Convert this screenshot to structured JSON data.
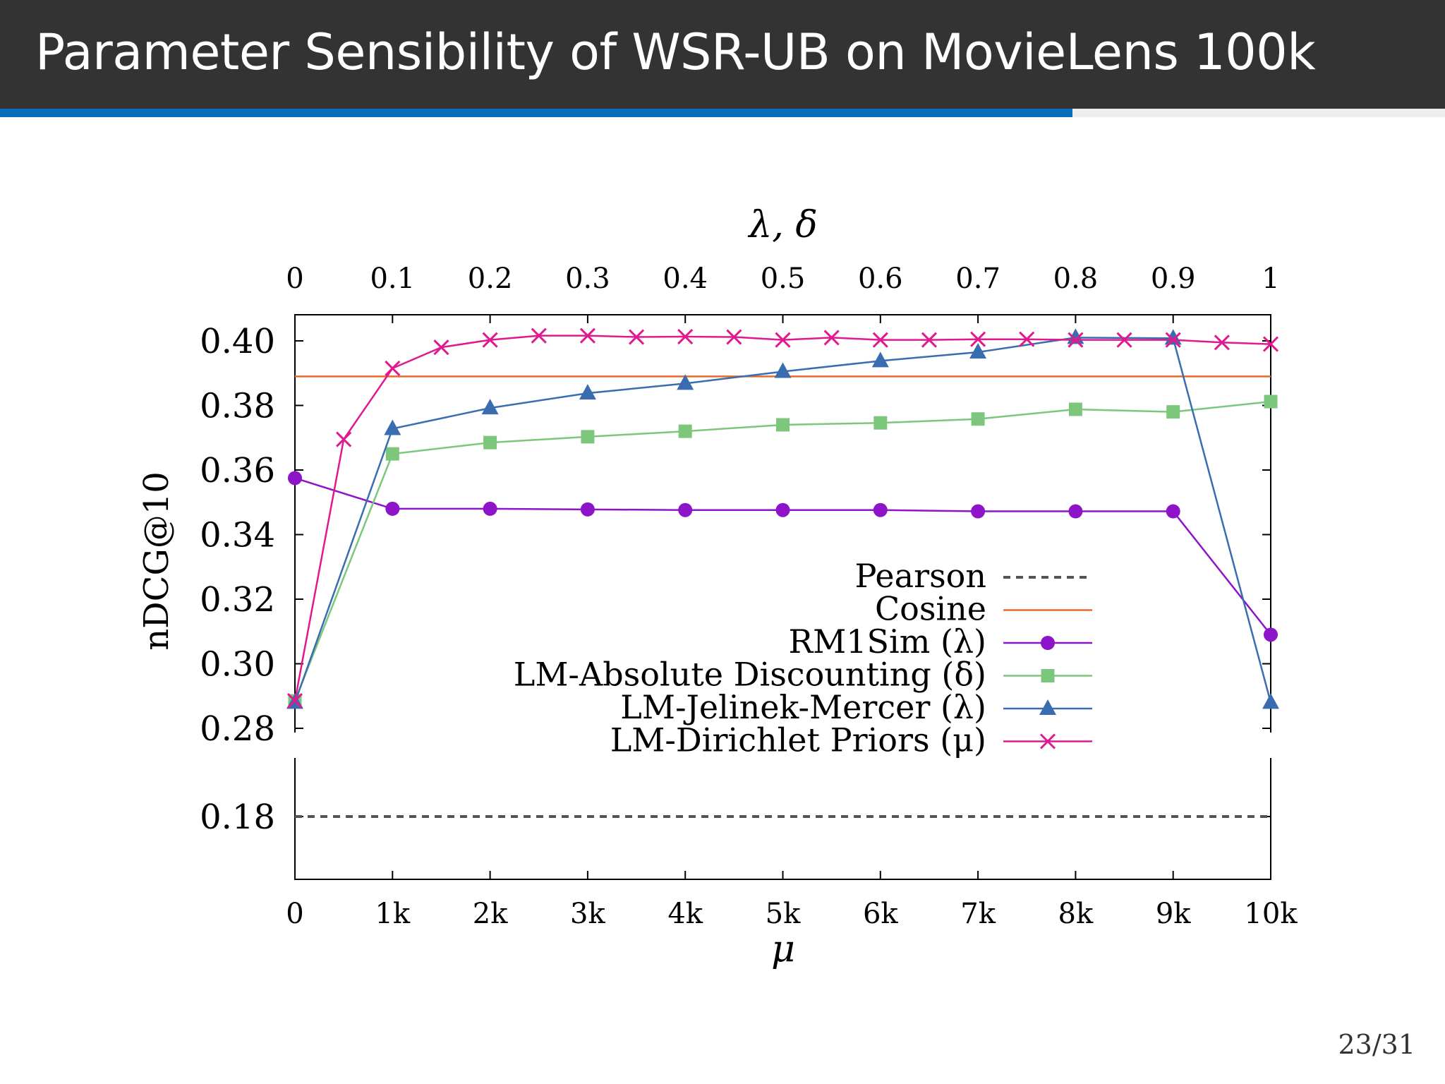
{
  "slide": {
    "title": "Parameter Sensibility of WSR-UB on MovieLens 100k",
    "page_number": "23/31",
    "progress": 0.742
  },
  "colors": {
    "title_bg": "#333333",
    "progress": "#0a6fba",
    "pearson": "#555555",
    "cosine": "#e8692a",
    "rm1sim": "#8e14c9",
    "lm_ad": "#7dc77d",
    "lm_jm": "#3a6db0",
    "lm_dp": "#e0198f"
  },
  "chart_data": {
    "type": "line",
    "xlabel": "μ",
    "x2label": "λ, δ",
    "ylabel": "nDCG@10",
    "x_ticks": [
      "0",
      "1k",
      "2k",
      "3k",
      "4k",
      "5k",
      "6k",
      "7k",
      "8k",
      "9k",
      "10k"
    ],
    "x2_ticks": [
      "0",
      "0.1",
      "0.2",
      "0.3",
      "0.4",
      "0.5",
      "0.6",
      "0.7",
      "0.8",
      "0.9",
      "1"
    ],
    "xlim": [
      0,
      10000
    ],
    "x2lim": [
      0,
      1
    ],
    "ylim_upper": [
      0.28,
      0.41
    ],
    "ylim_lower": [
      0.16,
      0.2
    ],
    "y_ticks_upper": [
      "0.28",
      "0.30",
      "0.32",
      "0.34",
      "0.36",
      "0.38",
      "0.40"
    ],
    "y_ticks_lower": [
      "0.18"
    ],
    "legend_position": "lower-right",
    "series": [
      {
        "name": "Pearson",
        "key": "pearson",
        "marker": "none",
        "dash": true,
        "x_axis": "top",
        "x": [
          0,
          1
        ],
        "y": [
          0.18,
          0.18
        ]
      },
      {
        "name": "Cosine",
        "key": "cosine",
        "marker": "none",
        "dash": false,
        "x_axis": "top",
        "x": [
          0,
          1
        ],
        "y": [
          0.389,
          0.389
        ]
      },
      {
        "name": "RM1Sim (λ)",
        "key": "rm1sim",
        "marker": "circle",
        "dash": false,
        "x_axis": "top",
        "x": [
          0,
          0.1,
          0.2,
          0.3,
          0.4,
          0.5,
          0.6,
          0.7,
          0.8,
          0.9,
          1
        ],
        "y": [
          0.3575,
          0.348,
          0.348,
          0.3478,
          0.3476,
          0.3476,
          0.3476,
          0.3472,
          0.3472,
          0.3472,
          0.309
        ]
      },
      {
        "name": "LM-Absolute Discounting (δ)",
        "key": "lm_ad",
        "marker": "square",
        "dash": false,
        "x_axis": "top",
        "x": [
          0,
          0.1,
          0.2,
          0.3,
          0.4,
          0.5,
          0.6,
          0.7,
          0.8,
          0.9,
          1
        ],
        "y": [
          0.2885,
          0.365,
          0.3685,
          0.3703,
          0.372,
          0.374,
          0.3746,
          0.3758,
          0.3788,
          0.378,
          0.3812
        ]
      },
      {
        "name": "LM-Jelinek-Mercer (λ)",
        "key": "lm_jm",
        "marker": "triangle",
        "dash": false,
        "x_axis": "top",
        "x": [
          0,
          0.1,
          0.2,
          0.3,
          0.4,
          0.5,
          0.6,
          0.7,
          0.8,
          0.9,
          1
        ],
        "y": [
          0.288,
          0.3728,
          0.3792,
          0.3838,
          0.3868,
          0.3905,
          0.3938,
          0.3965,
          0.401,
          0.4008,
          0.288
        ]
      },
      {
        "name": "LM-Dirichlet Priors (μ)",
        "key": "lm_dp",
        "marker": "x",
        "dash": false,
        "x_axis": "bottom",
        "x": [
          0,
          500,
          1000,
          1500,
          2000,
          2500,
          3000,
          3500,
          4000,
          4500,
          5000,
          5500,
          6000,
          6500,
          7000,
          7500,
          8000,
          8500,
          9000,
          9500,
          10000
        ],
        "y": [
          0.2885,
          0.3695,
          0.3915,
          0.398,
          0.4003,
          0.4016,
          0.4016,
          0.4012,
          0.4013,
          0.4012,
          0.4003,
          0.401,
          0.4003,
          0.4003,
          0.4005,
          0.4005,
          0.4003,
          0.4003,
          0.4003,
          0.3995,
          0.399
        ]
      }
    ]
  }
}
